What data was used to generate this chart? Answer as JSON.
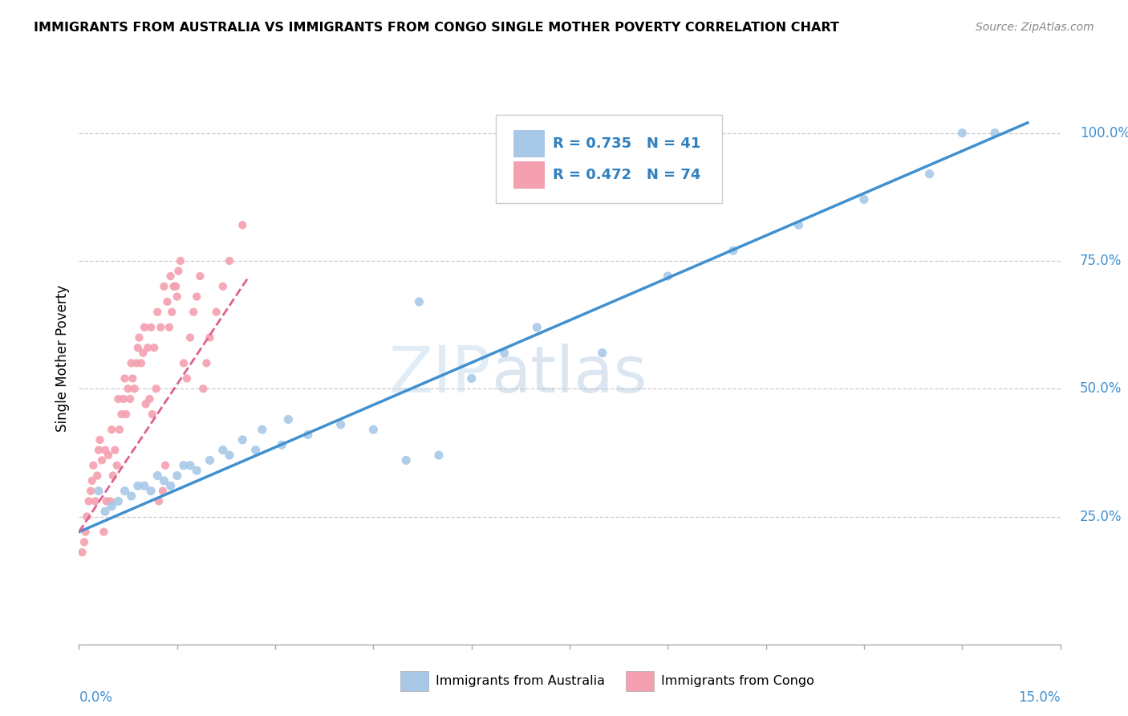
{
  "title": "IMMIGRANTS FROM AUSTRALIA VS IMMIGRANTS FROM CONGO SINGLE MOTHER POVERTY CORRELATION CHART",
  "source": "Source: ZipAtlas.com",
  "ylabel": "Single Mother Poverty",
  "xmin": 0.0,
  "xmax": 15.0,
  "ymin": 0.0,
  "ymax": 112.0,
  "legend_r_australia": "R = 0.735",
  "legend_n_australia": "N = 41",
  "legend_r_congo": "R = 0.472",
  "legend_n_congo": "N = 74",
  "watermark_zip": "ZIP",
  "watermark_atlas": "atlas",
  "australia_color": "#a8c8e8",
  "congo_color": "#f4a0b0",
  "australia_line_color": "#4090d0",
  "congo_line_color": "#e06090",
  "australia_scatter_x": [
    0.3,
    0.5,
    0.7,
    0.9,
    1.1,
    1.3,
    1.5,
    1.7,
    2.0,
    2.3,
    2.7,
    3.1,
    3.5,
    4.0,
    4.5,
    5.0,
    5.2,
    5.5,
    6.0,
    6.5,
    7.0,
    8.0,
    9.0,
    10.0,
    11.0,
    12.0,
    13.0,
    13.5,
    14.0,
    0.4,
    0.6,
    0.8,
    1.0,
    1.2,
    1.4,
    1.6,
    1.8,
    2.2,
    2.5,
    2.8,
    3.2
  ],
  "australia_scatter_y": [
    30,
    27,
    30,
    31,
    30,
    32,
    33,
    35,
    36,
    37,
    38,
    39,
    41,
    43,
    42,
    36,
    67,
    37,
    52,
    57,
    62,
    57,
    72,
    77,
    82,
    87,
    92,
    100,
    100,
    26,
    28,
    29,
    31,
    33,
    31,
    35,
    34,
    38,
    40,
    42,
    44
  ],
  "congo_scatter_x": [
    0.05,
    0.08,
    0.1,
    0.12,
    0.15,
    0.18,
    0.2,
    0.22,
    0.25,
    0.28,
    0.3,
    0.32,
    0.35,
    0.38,
    0.4,
    0.42,
    0.45,
    0.48,
    0.5,
    0.52,
    0.55,
    0.58,
    0.6,
    0.62,
    0.65,
    0.68,
    0.7,
    0.72,
    0.75,
    0.78,
    0.8,
    0.82,
    0.85,
    0.88,
    0.9,
    0.92,
    0.95,
    0.98,
    1.0,
    1.02,
    1.05,
    1.08,
    1.1,
    1.12,
    1.15,
    1.18,
    1.2,
    1.22,
    1.25,
    1.28,
    1.3,
    1.32,
    1.35,
    1.38,
    1.4,
    1.42,
    1.45,
    1.48,
    1.5,
    1.52,
    1.55,
    1.6,
    1.65,
    1.7,
    1.75,
    1.8,
    1.85,
    1.9,
    1.95,
    2.0,
    2.1,
    2.2,
    2.3,
    2.5
  ],
  "congo_scatter_y": [
    18,
    20,
    22,
    25,
    28,
    30,
    32,
    35,
    28,
    33,
    38,
    40,
    36,
    22,
    38,
    28,
    37,
    28,
    42,
    33,
    38,
    35,
    48,
    42,
    45,
    48,
    52,
    45,
    50,
    48,
    55,
    52,
    50,
    55,
    58,
    60,
    55,
    57,
    62,
    47,
    58,
    48,
    62,
    45,
    58,
    50,
    65,
    28,
    62,
    30,
    70,
    35,
    67,
    62,
    72,
    65,
    70,
    70,
    68,
    73,
    75,
    55,
    52,
    60,
    65,
    68,
    72,
    50,
    55,
    60,
    65,
    70,
    75,
    82
  ],
  "aus_line_x0": 0.0,
  "aus_line_y0": 22.0,
  "aus_line_x1": 14.5,
  "aus_line_y1": 102.0,
  "congo_line_x0": 0.0,
  "congo_line_y0": 22.0,
  "congo_line_x1": 2.6,
  "congo_line_y1": 72.0
}
